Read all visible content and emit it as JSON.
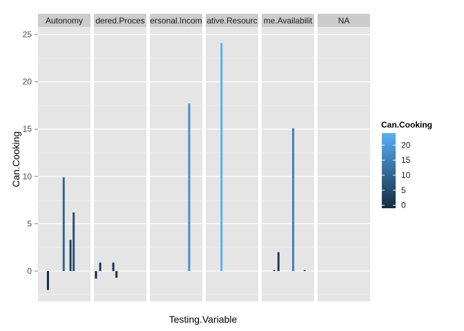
{
  "chart_data": {
    "type": "bar",
    "xlabel": "Testing.Variable",
    "ylabel": "Can.Cooking",
    "ylim": [
      -3.2,
      25.8
    ],
    "y_ticks": [
      0,
      5,
      10,
      15,
      20,
      25
    ],
    "grid": true,
    "legend": {
      "title": "Can.Cooking",
      "placement": "right",
      "ticks": [
        0,
        5,
        10,
        15,
        20
      ],
      "range": [
        -1,
        24
      ],
      "low_color": "#132b43",
      "high_color": "#56b1f7"
    },
    "panels": [
      {
        "label": "Autonomy",
        "bars": [
          {
            "x": 0.19,
            "value": -2.0
          },
          {
            "x": 0.49,
            "value": 9.9
          },
          {
            "x": 0.62,
            "value": 3.3
          },
          {
            "x": 0.68,
            "value": 6.2
          }
        ]
      },
      {
        "label": "dered.Proces",
        "bars": [
          {
            "x": 0.04,
            "value": -0.8
          },
          {
            "x": 0.12,
            "value": 0.9
          },
          {
            "x": 0.37,
            "value": 0.9
          },
          {
            "x": 0.43,
            "value": -0.7
          }
        ]
      },
      {
        "label": "ersonal.Incom",
        "bars": [
          {
            "x": 0.75,
            "value": 17.7
          }
        ]
      },
      {
        "label": "ative.Resourc",
        "bars": [
          {
            "x": 0.3,
            "value": 24.1
          }
        ]
      },
      {
        "label": "me.Availabilit",
        "bars": [
          {
            "x": 0.24,
            "value": 0.1
          },
          {
            "x": 0.32,
            "value": 2.0
          },
          {
            "x": 0.6,
            "value": 15.1
          },
          {
            "x": 0.82,
            "value": 0.1
          }
        ]
      },
      {
        "label": "NA",
        "bars": []
      }
    ]
  }
}
